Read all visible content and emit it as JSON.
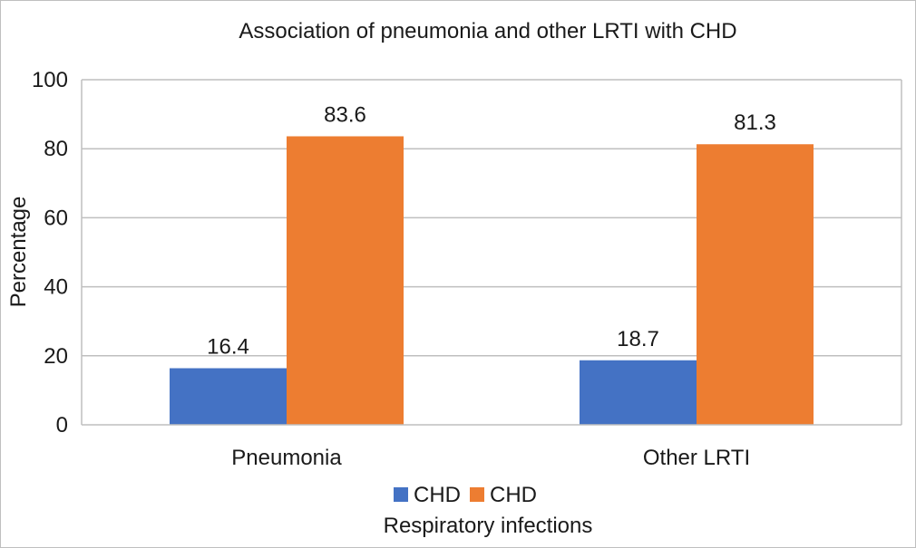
{
  "chart_data": {
    "type": "bar",
    "title": "Association of pneumonia and other LRTI with CHD",
    "xlabel": "Respiratory infections",
    "ylabel": "Percentage",
    "categories": [
      "Pneumonia",
      "Other LRTI"
    ],
    "series": [
      {
        "name": "CHD",
        "color": "#4472c4",
        "values": [
          16.4,
          18.7
        ]
      },
      {
        "name": "CHD",
        "color": "#ed7d31",
        "values": [
          83.6,
          81.3
        ]
      }
    ],
    "ylim": [
      0,
      100
    ],
    "yticks": [
      0,
      20,
      40,
      60,
      80,
      100
    ],
    "grid": true,
    "legend_position": "bottom",
    "data_labels": true
  }
}
